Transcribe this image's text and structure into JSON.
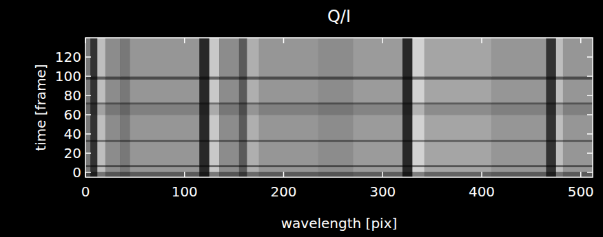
{
  "chart_data": {
    "type": "heatmap",
    "title": "Q/I",
    "x_label": "wavelength [pix]",
    "y_label": "time [frame]",
    "xlim": [
      0,
      512
    ],
    "ylim": [
      -5,
      140
    ],
    "xticks": [
      0,
      100,
      200,
      300,
      400,
      500
    ],
    "yticks": [
      0,
      20,
      40,
      60,
      80,
      100,
      120
    ],
    "x": [
      0,
      5,
      12,
      20,
      35,
      45,
      115,
      125,
      135,
      155,
      163,
      175,
      235,
      270,
      320,
      330,
      342,
      410,
      465,
      475,
      482,
      512
    ],
    "y": [
      -5,
      1,
      6,
      8,
      32,
      34,
      60,
      71,
      73,
      97,
      100,
      140
    ],
    "cells": [
      [
        72,
        30,
        114,
        84,
        72,
        90,
        24,
        120,
        84,
        54,
        105,
        90,
        84,
        93,
        24,
        126,
        99,
        90,
        30,
        114,
        90
      ],
      [
        120,
        50,
        190,
        140,
        120,
        150,
        40,
        200,
        140,
        90,
        175,
        150,
        140,
        155,
        40,
        210,
        165,
        150,
        50,
        190,
        150
      ],
      [
        60,
        25,
        95,
        70,
        60,
        75,
        20,
        100,
        70,
        45,
        88,
        75,
        70,
        78,
        20,
        105,
        83,
        75,
        25,
        95,
        75
      ],
      [
        120,
        50,
        190,
        140,
        120,
        150,
        40,
        200,
        140,
        90,
        175,
        150,
        140,
        155,
        40,
        210,
        165,
        150,
        50,
        190,
        150
      ],
      [
        72,
        30,
        114,
        84,
        72,
        90,
        24,
        120,
        84,
        54,
        105,
        90,
        84,
        93,
        24,
        126,
        99,
        90,
        30,
        114,
        90
      ],
      [
        120,
        50,
        190,
        140,
        120,
        150,
        40,
        200,
        140,
        90,
        175,
        150,
        140,
        155,
        40,
        210,
        165,
        150,
        50,
        190,
        150
      ],
      [
        102,
        43,
        162,
        119,
        102,
        128,
        34,
        170,
        119,
        77,
        149,
        128,
        119,
        132,
        34,
        179,
        140,
        128,
        43,
        162,
        128
      ],
      [
        66,
        28,
        105,
        77,
        66,
        83,
        22,
        110,
        77,
        50,
        96,
        83,
        77,
        85,
        22,
        116,
        91,
        83,
        28,
        105,
        83
      ],
      [
        120,
        50,
        190,
        140,
        120,
        150,
        40,
        200,
        140,
        90,
        175,
        150,
        140,
        155,
        40,
        210,
        165,
        150,
        50,
        190,
        150
      ],
      [
        60,
        25,
        95,
        70,
        60,
        75,
        20,
        100,
        70,
        45,
        88,
        75,
        70,
        78,
        20,
        105,
        83,
        75,
        25,
        95,
        75
      ],
      [
        120,
        50,
        190,
        140,
        120,
        150,
        40,
        200,
        140,
        90,
        175,
        150,
        140,
        155,
        40,
        210,
        165,
        150,
        50,
        190,
        150
      ]
    ]
  }
}
